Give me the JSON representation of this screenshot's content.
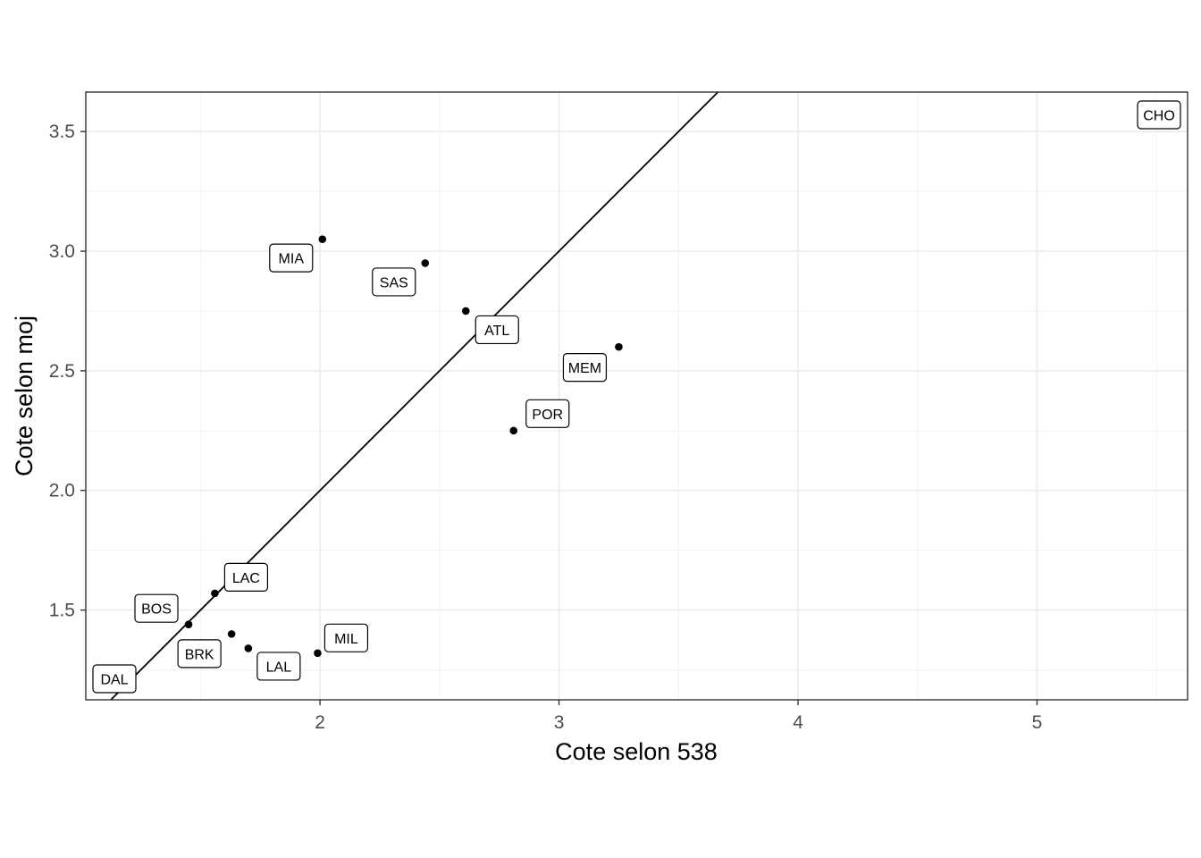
{
  "chart_data": {
    "type": "scatter",
    "xlabel": "Cote selon 538",
    "ylabel": "Cote selon moj",
    "xlim": [
      1.02,
      5.63
    ],
    "ylim": [
      1.125,
      3.665
    ],
    "x_ticks": [
      2,
      3,
      4,
      5
    ],
    "y_ticks": [
      1.5,
      2.0,
      2.5,
      3.0,
      3.5
    ],
    "x_tick_labels": [
      "2",
      "3",
      "4",
      "5"
    ],
    "y_tick_labels": [
      "1.5",
      "2.0",
      "2.5",
      "3.0",
      "3.5"
    ],
    "grid": true,
    "reference_line": {
      "slope": 1,
      "intercept": 0
    },
    "points": [
      {
        "label": "CHO",
        "x": 5.63,
        "y": 3.63
      },
      {
        "label": "MIA",
        "x": 2.01,
        "y": 3.05
      },
      {
        "label": "SAS",
        "x": 2.44,
        "y": 2.95
      },
      {
        "label": "ATL",
        "x": 2.61,
        "y": 2.75
      },
      {
        "label": "MEM",
        "x": 3.25,
        "y": 2.6
      },
      {
        "label": "POR",
        "x": 2.81,
        "y": 2.25
      },
      {
        "label": "LAC",
        "x": 1.56,
        "y": 1.57
      },
      {
        "label": "BOS",
        "x": 1.45,
        "y": 1.44
      },
      {
        "label": "BRK",
        "x": 1.63,
        "y": 1.4
      },
      {
        "label": "LAL",
        "x": 1.7,
        "y": 1.34
      },
      {
        "label": "MIL",
        "x": 1.99,
        "y": 1.32
      },
      {
        "label": "DAL",
        "x": 1.03,
        "y": 1.13
      }
    ]
  }
}
